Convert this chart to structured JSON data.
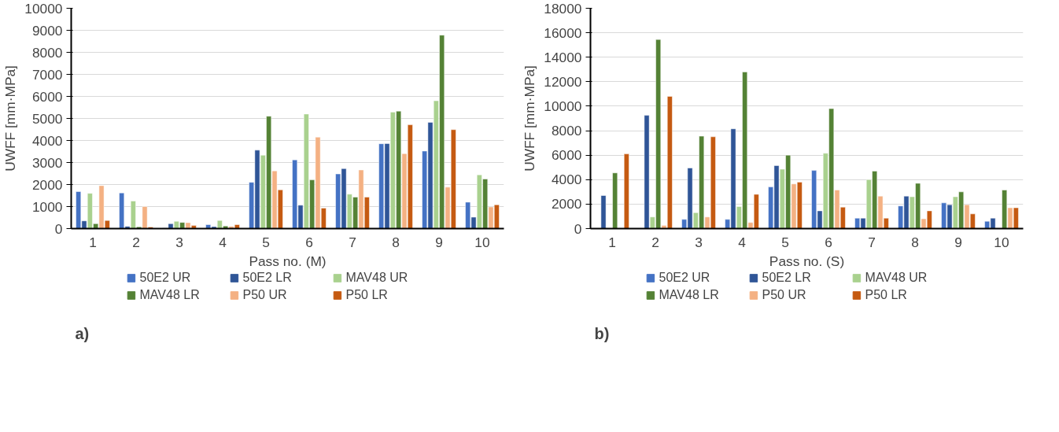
{
  "chart_data": [
    {
      "type": "bar",
      "xlabel": "Pass no. (M)",
      "ylabel": "UWFF [mm·MPa]",
      "categories": [
        "1",
        "2",
        "3",
        "4",
        "5",
        "6",
        "7",
        "8",
        "9",
        "10"
      ],
      "ylim": [
        0,
        10000
      ],
      "yticks": [
        0,
        1000,
        2000,
        3000,
        4000,
        5000,
        6000,
        7000,
        8000,
        9000,
        10000
      ],
      "grid": "y",
      "legend": "bottom",
      "annotations": [
        "a)"
      ],
      "series": [
        {
          "name": "50E2 UR",
          "color": "#4472c4",
          "values": [
            1680,
            1620,
            30,
            180,
            2100,
            3120,
            2480,
            3850,
            3520,
            1200
          ]
        },
        {
          "name": "50E2 LR",
          "color": "#2f5597",
          "values": [
            350,
            100,
            220,
            90,
            3560,
            1060,
            2720,
            3860,
            4820,
            520
          ]
        },
        {
          "name": "MAV48 UR",
          "color": "#a9d18e",
          "values": [
            1600,
            1250,
            330,
            370,
            3330,
            5200,
            1560,
            5290,
            5800,
            2440
          ]
        },
        {
          "name": "MAV48 LR",
          "color": "#548235",
          "values": [
            220,
            80,
            280,
            120,
            5100,
            2210,
            1430,
            5330,
            8780,
            2250
          ]
        },
        {
          "name": "P50 UR",
          "color": "#f4b183",
          "values": [
            1950,
            1000,
            270,
            100,
            2620,
            4150,
            2660,
            3400,
            1880,
            980
          ]
        },
        {
          "name": "P50 LR",
          "color": "#c55a11",
          "values": [
            370,
            70,
            140,
            180,
            1760,
            930,
            1430,
            4710,
            4490,
            1080
          ]
        }
      ]
    },
    {
      "type": "bar",
      "xlabel": "Pass no. (S)",
      "ylabel": "UWFF [mm·MPa]",
      "categories": [
        "1",
        "2",
        "3",
        "4",
        "5",
        "6",
        "7",
        "8",
        "9",
        "10"
      ],
      "ylim": [
        0,
        18000
      ],
      "yticks": [
        0,
        2000,
        4000,
        6000,
        8000,
        10000,
        12000,
        14000,
        16000,
        18000
      ],
      "grid": "y",
      "legend": "bottom",
      "annotations": [
        "b)"
      ],
      "series": [
        {
          "name": "50E2 UR",
          "color": "#4472c4",
          "values": [
            null,
            null,
            750,
            750,
            3400,
            4750,
            850,
            1850,
            2100,
            600
          ]
        },
        {
          "name": "50E2 LR",
          "color": "#2f5597",
          "values": [
            2700,
            9250,
            4950,
            8150,
            5150,
            1450,
            850,
            2650,
            1950,
            850
          ]
        },
        {
          "name": "MAV48 UR",
          "color": "#a9d18e",
          "values": [
            null,
            950,
            1300,
            1800,
            4850,
            6150,
            4000,
            2600,
            2600,
            null
          ]
        },
        {
          "name": "MAV48 LR",
          "color": "#548235",
          "values": [
            4550,
            15450,
            7550,
            12800,
            6000,
            9800,
            4700,
            3700,
            3000,
            3150
          ]
        },
        {
          "name": "P50 UR",
          "color": "#f4b183",
          "values": [
            null,
            250,
            950,
            500,
            3650,
            3150,
            2650,
            800,
            1950,
            1700
          ]
        },
        {
          "name": "P50 LR",
          "color": "#c55a11",
          "values": [
            6100,
            10800,
            7500,
            2800,
            3800,
            1750,
            850,
            1450,
            1200,
            1700
          ]
        }
      ]
    }
  ]
}
